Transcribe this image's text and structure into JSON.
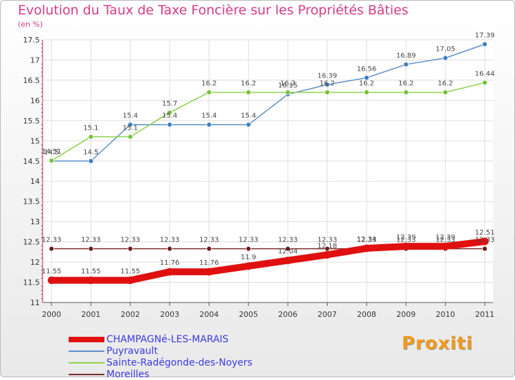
{
  "title": "Evolution du Taux de Taxe Foncière sur les Propriétés Bâties",
  "unit_label": "(en %)",
  "logo_text": "Proxiti",
  "chart_data": {
    "type": "line",
    "title": "Evolution du Taux de Taxe Foncière sur les Propriétés Bâties",
    "ylabel": "(en %)",
    "xlabel": "",
    "ylim": [
      11,
      17.5
    ],
    "yticks": [
      "11",
      "11.5",
      "12",
      "12.5",
      "13",
      "13.5",
      "14",
      "14.5",
      "15",
      "15.5",
      "16",
      "16.5",
      "17",
      "17.5"
    ],
    "ytick_values": [
      11,
      11.5,
      12,
      12.5,
      13,
      13.5,
      14,
      14.5,
      15,
      15.5,
      16,
      16.5,
      17,
      17.5
    ],
    "x": [
      "2000",
      "2001",
      "2002",
      "2003",
      "2004",
      "2005",
      "2006",
      "2007",
      "2008",
      "2009",
      "2010",
      "2011"
    ],
    "grid": true,
    "legend_position": "bottom-left",
    "series": [
      {
        "name": "CHAMPAGNé-LES-MARAIS",
        "color": "#e01010",
        "values": [
          11.55,
          11.55,
          11.55,
          11.76,
          11.76,
          11.9,
          12.04,
          12.18,
          12.34,
          12.39,
          12.39,
          12.51
        ],
        "labels": [
          "11.55",
          "11.55",
          "11.55",
          "11.76",
          "11.76",
          "11.9",
          "12.04",
          "12.18",
          "12.34",
          "12.39",
          "12.39",
          "12.51"
        ]
      },
      {
        "name": "Puyravault",
        "color": "#5b8fc8",
        "marker": "#3d7fc4",
        "values": [
          14.5,
          14.5,
          15.4,
          15.4,
          15.4,
          15.4,
          16.15,
          16.39,
          16.56,
          16.89,
          17.05,
          17.39
        ],
        "labels": [
          "14.5",
          "14.5",
          "15.4",
          "15.4",
          "15.4",
          "15.4",
          "16.15",
          "16.39",
          "16.56",
          "16.89",
          "17.05",
          "17.39"
        ]
      },
      {
        "name": "Sainte-Radégonde-des-Noyers",
        "color": "#8bd14a",
        "marker": "#74c236",
        "values": [
          14.51,
          15.1,
          15.1,
          15.7,
          16.2,
          16.2,
          16.2,
          16.2,
          16.2,
          16.2,
          16.2,
          16.44
        ],
        "labels": [
          "14.51",
          "15.1",
          "15.1",
          "15.7",
          "16.2",
          "16.2",
          "16.2",
          "16.2",
          "16.2",
          "16.2",
          "16.2",
          "16.44"
        ]
      },
      {
        "name": "Moreilles",
        "color": "#7a2a2a",
        "marker": "#6b1c1c",
        "values": [
          12.33,
          12.33,
          12.33,
          12.33,
          12.33,
          12.33,
          12.33,
          12.33,
          12.33,
          12.33,
          12.33,
          12.33
        ],
        "labels": [
          "12.33",
          "12.33",
          "12.33",
          "12.33",
          "12.33",
          "12.33",
          "12.33",
          "12.33",
          "12.33",
          "12.33",
          "12.33",
          "12.33"
        ]
      }
    ]
  }
}
